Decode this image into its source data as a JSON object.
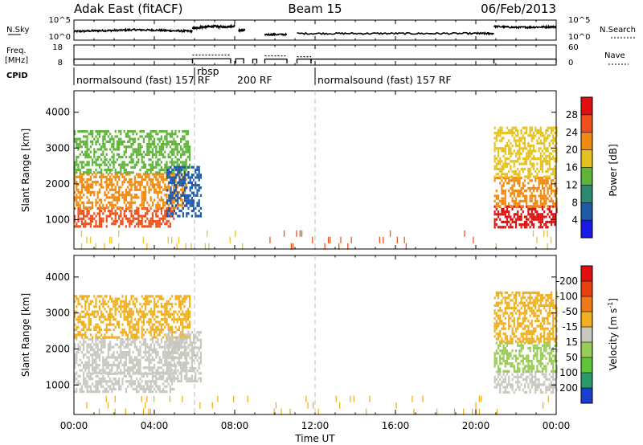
{
  "header": {
    "radar": "Adak East (fitACF)",
    "beam": "Beam 15",
    "date": "06/Feb/2013"
  },
  "chart_data": [
    {
      "id": "nsky-nsearch",
      "type": "line",
      "left_label": "N.Sky",
      "right_label": "N.Search",
      "y_ticks_left": [
        "10^5",
        "10^0"
      ],
      "y_ticks_right": [
        "10^5",
        "10^0"
      ],
      "xlim": [
        0,
        24
      ],
      "segments": [
        {
          "x": [
            0.0,
            1.0,
            2.0,
            3.0,
            4.0,
            5.0,
            5.9
          ],
          "y": [
            2.1,
            2.3,
            2.4,
            2.6,
            2.5,
            2.3,
            2.2
          ]
        },
        {
          "x": [
            5.9,
            6.4,
            7.0,
            7.5,
            8.0
          ],
          "y": [
            3.0,
            3.4,
            3.6,
            3.5,
            3.7
          ]
        },
        {
          "x": [
            8.2,
            8.5
          ],
          "y": [
            2.4,
            2.4
          ]
        },
        {
          "x": [
            9.5,
            10.6
          ],
          "y": [
            1.2,
            1.2
          ]
        },
        {
          "x": [
            11.1,
            14.0,
            17.0,
            20.0,
            20.9
          ],
          "y": [
            1.5,
            1.5,
            1.5,
            1.5,
            1.5
          ]
        },
        {
          "x": [
            20.9,
            22.0,
            23.0,
            24.0
          ],
          "y": [
            3.6,
            3.3,
            3.4,
            3.5
          ]
        }
      ]
    },
    {
      "id": "freq-nave",
      "type": "line",
      "left_label": "Freq.",
      "left_unit": "[MHz]",
      "right_label": "Nave",
      "y_ticks_left": [
        "18",
        "8"
      ],
      "y_ticks_right": [
        "60",
        "0"
      ],
      "xlim": [
        0,
        24
      ],
      "freq": [
        {
          "x": [
            0.0,
            5.9
          ],
          "y": [
            10.6,
            10.6
          ]
        },
        {
          "x": [
            5.9,
            7.8
          ],
          "y": [
            10.8,
            10.8
          ]
        },
        {
          "x": [
            8.05,
            8.45
          ],
          "y": [
            10.8,
            10.8
          ]
        },
        {
          "x": [
            8.9,
            9.1
          ],
          "y": [
            10.5,
            10.5
          ]
        },
        {
          "x": [
            9.5,
            10.6
          ],
          "y": [
            10.6,
            10.6
          ]
        },
        {
          "x": [
            11.1,
            11.8
          ],
          "y": [
            10.6,
            10.6
          ]
        },
        {
          "x": [
            11.8,
            20.9
          ],
          "y": [
            10.6,
            10.6
          ]
        },
        {
          "x": [
            20.9,
            24.0
          ],
          "y": [
            10.6,
            10.6
          ]
        }
      ],
      "nave": [
        {
          "x": [
            5.9,
            7.8
          ],
          "y": [
            30,
            30
          ]
        },
        {
          "x": [
            9.5,
            10.6
          ],
          "y": [
            27,
            27
          ]
        },
        {
          "x": [
            11.1,
            11.8
          ],
          "y": [
            24,
            24
          ]
        }
      ]
    },
    {
      "id": "power",
      "type": "heatmap",
      "ylabel": "Slant Range [km]",
      "yticks": [
        "1000",
        "2000",
        "3000",
        "4000"
      ],
      "ylim": [
        180,
        4600
      ],
      "xlim": [
        0,
        24
      ],
      "colorbar_label": "Power [dB]",
      "colorbar_ticks": [
        "4",
        "8",
        "12",
        "16",
        "20",
        "24",
        "28"
      ],
      "colorbar_colors": [
        "#1a1ae6",
        "#1f5aa8",
        "#2e8a6e",
        "#5fb53a",
        "#e6c21e",
        "#f08a10",
        "#f0501a",
        "#e01010"
      ],
      "regions": [
        {
          "t0": 0.0,
          "t1": 5.0,
          "r0": 800,
          "r1": 1350,
          "value": 27
        },
        {
          "t0": 0.0,
          "t1": 5.6,
          "r0": 1350,
          "r1": 2300,
          "value": 22
        },
        {
          "t0": 0.0,
          "t1": 5.8,
          "r0": 2300,
          "r1": 3500,
          "value": 14
        },
        {
          "t0": 4.6,
          "t1": 6.3,
          "r0": 1100,
          "r1": 2500,
          "value": 5
        },
        {
          "t0": 20.9,
          "t1": 24.0,
          "r0": 800,
          "r1": 1400,
          "value": 28
        },
        {
          "t0": 20.9,
          "t1": 24.0,
          "r0": 1400,
          "r1": 2200,
          "value": 22
        },
        {
          "t0": 20.9,
          "t1": 24.0,
          "r0": 2200,
          "r1": 3600,
          "value": 17
        },
        {
          "t0": 0.0,
          "t1": 8.5,
          "r0": 200,
          "r1": 700,
          "value": 16
        },
        {
          "t0": 8.5,
          "t1": 20.9,
          "r0": 200,
          "r1": 700,
          "value": 26
        },
        {
          "t0": 20.9,
          "t1": 24.0,
          "r0": 200,
          "r1": 700,
          "value": 18
        }
      ]
    },
    {
      "id": "velocity",
      "type": "heatmap",
      "ylabel": "Slant Range [km]",
      "yticks": [
        "1000",
        "2000",
        "3000",
        "4000"
      ],
      "ylim": [
        180,
        4600
      ],
      "xlim": [
        0,
        24
      ],
      "xticks": [
        "00:00",
        "04:00",
        "08:00",
        "12:00",
        "16:00",
        "20:00",
        "00:00"
      ],
      "xlabel": "Time UT",
      "colorbar_label": "Velocity [m s^-1]",
      "colorbar_ticks": [
        "200",
        "100",
        "50",
        "15",
        "-15",
        "-50",
        "-100",
        "-200"
      ],
      "colorbar_colors": [
        "#1a3fd0",
        "#2a9a6a",
        "#5ec43a",
        "#99cc55",
        "#c8c8c0",
        "#f0b020",
        "#f07818",
        "#e84010",
        "#e01010"
      ],
      "regions": [
        {
          "t0": 0.0,
          "t1": 5.0,
          "r0": 800,
          "r1": 1350,
          "value": 0
        },
        {
          "t0": 0.0,
          "t1": 5.6,
          "r0": 1350,
          "r1": 2300,
          "value": 0
        },
        {
          "t0": 0.0,
          "t1": 5.8,
          "r0": 2300,
          "r1": 3500,
          "value": -20
        },
        {
          "t0": 4.6,
          "t1": 6.3,
          "r0": 1100,
          "r1": 2500,
          "value": 0
        },
        {
          "t0": 20.9,
          "t1": 24.0,
          "r0": 800,
          "r1": 1400,
          "value": 0
        },
        {
          "t0": 20.9,
          "t1": 24.0,
          "r0": 1400,
          "r1": 2200,
          "value": 30
        },
        {
          "t0": 20.9,
          "t1": 24.0,
          "r0": 2200,
          "r1": 3600,
          "value": -20
        },
        {
          "t0": 0.0,
          "t1": 24.0,
          "r0": 200,
          "r1": 700,
          "value": -30
        }
      ]
    }
  ],
  "cpid": {
    "label": "CPID",
    "modes": [
      {
        "t": 0.0,
        "text": "normalsound (fast) 157 RF",
        "row": 0
      },
      {
        "t": 6.0,
        "text": "rbsp",
        "row": -1
      },
      {
        "t": 8.0,
        "text": "200 RF",
        "row": 0
      },
      {
        "t": 12.0,
        "text": "normalsound (fast) 157 RF",
        "row": 0
      }
    ],
    "boundaries": [
      0.0,
      6.0,
      12.0
    ]
  },
  "reference_times": [
    6.0,
    12.0
  ]
}
